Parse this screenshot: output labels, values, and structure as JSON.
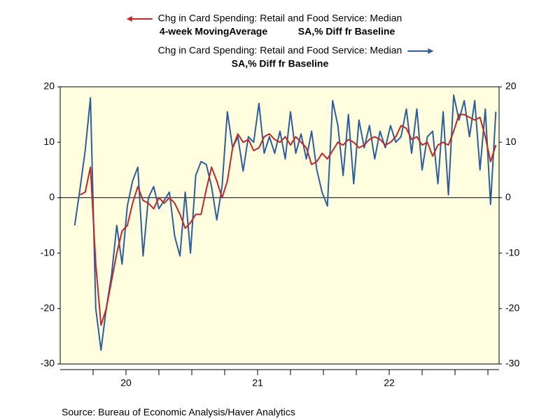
{
  "chart_data": {
    "type": "line",
    "source": "Source:  Bureau of Economic Analysis/Haver Analytics",
    "x": [
      2020.11,
      2020.15,
      2020.19,
      2020.23,
      2020.27,
      2020.31,
      2020.35,
      2020.39,
      2020.43,
      2020.47,
      2020.51,
      2020.55,
      2020.59,
      2020.63,
      2020.67,
      2020.71,
      2020.75,
      2020.79,
      2020.83,
      2020.87,
      2020.91,
      2020.95,
      2020.99,
      2021.03,
      2021.07,
      2021.11,
      2021.15,
      2021.19,
      2021.23,
      2021.27,
      2021.31,
      2021.35,
      2021.39,
      2021.43,
      2021.47,
      2021.51,
      2021.55,
      2021.59,
      2021.63,
      2021.67,
      2021.71,
      2021.75,
      2021.79,
      2021.83,
      2021.87,
      2021.91,
      2021.95,
      2021.99,
      2022.03,
      2022.07,
      2022.11,
      2022.15,
      2022.19,
      2022.23,
      2022.27,
      2022.31,
      2022.35,
      2022.39,
      2022.43,
      2022.47,
      2022.51,
      2022.55,
      2022.59,
      2022.63,
      2022.67,
      2022.71,
      2022.75,
      2022.79,
      2022.83,
      2022.87,
      2022.91,
      2022.95,
      2022.99,
      2023.03,
      2023.07,
      2023.11,
      2023.15,
      2023.19,
      2023.23,
      2023.27,
      2023.31
    ],
    "series": [
      {
        "name": "Chg in Card Spending: Retail and Food Service: Median",
        "name_line2": "4-week MovingAverage",
        "name_line3": "SA,% Diff fr Baseline",
        "color": "#c0272d",
        "arrow": "left",
        "values": [
          null,
          0.5,
          1,
          5.5,
          -12,
          -23,
          -20,
          -15,
          -10,
          -6,
          -5,
          -1,
          2,
          -0.5,
          -1,
          -2,
          0,
          -1,
          0,
          -1,
          -3,
          -5.5,
          -4.5,
          -3,
          -3,
          1.5,
          5.5,
          3,
          0,
          3,
          9,
          11.5,
          10,
          10.5,
          8.5,
          9,
          11,
          11.5,
          10.5,
          10,
          11,
          9.5,
          11,
          10,
          9,
          6,
          6.5,
          8,
          7,
          8.5,
          10,
          9.5,
          10.5,
          10,
          9,
          9.5,
          10.5,
          11,
          10.5,
          9.5,
          10,
          11,
          13,
          12.5,
          10.5,
          11,
          9.5,
          10,
          7.5,
          9.5,
          10,
          9.5,
          12,
          15,
          15,
          14.5,
          14,
          14.5,
          11,
          6.5,
          9.5
        ]
      },
      {
        "name": "Chg in Card Spending: Retail and Food Service: Median",
        "name_line2": "SA,% Diff fr Baseline",
        "color": "#2e5d9e",
        "arrow": "right",
        "values": [
          -5,
          1.5,
          8.5,
          18,
          -20,
          -27.5,
          -20,
          -14,
          -5,
          -12,
          -1.5,
          3,
          5.5,
          -10.5,
          0,
          2,
          -2,
          -0.5,
          1,
          -7,
          -10.5,
          1,
          -10,
          4,
          6.5,
          6,
          2,
          -4,
          2,
          15.5,
          9,
          11,
          4.8,
          11,
          10,
          17,
          8,
          11,
          8,
          12,
          7,
          15.5,
          8,
          11.5,
          7,
          12,
          5,
          1,
          -1.5,
          17.5,
          13,
          4,
          15,
          2.5,
          14,
          9,
          13,
          7,
          12,
          9,
          13,
          10,
          11,
          16,
          8,
          16,
          5,
          11,
          12,
          2.5,
          15.5,
          0.5,
          18.5,
          14,
          17.5,
          11,
          17.5,
          5,
          16,
          -1.2,
          15.5
        ]
      }
    ],
    "xlim": [
      2020,
      2023.335
    ],
    "xticks": [
      {
        "value": 2020.5,
        "label": "20"
      },
      {
        "value": 2021.5,
        "label": "21"
      },
      {
        "value": 2022.5,
        "label": "22"
      }
    ],
    "x_minor_ticks": [
      2020.25,
      2020.5,
      2020.75,
      2021,
      2021.25,
      2021.5,
      2021.75,
      2022,
      2022.25,
      2022.5,
      2022.75,
      2023,
      2023.25
    ],
    "ylim": [
      -30,
      20
    ],
    "yticks": [
      -30,
      -20,
      -10,
      0,
      10,
      20
    ],
    "zero_line": true,
    "plot_background": "#ffffe0"
  }
}
